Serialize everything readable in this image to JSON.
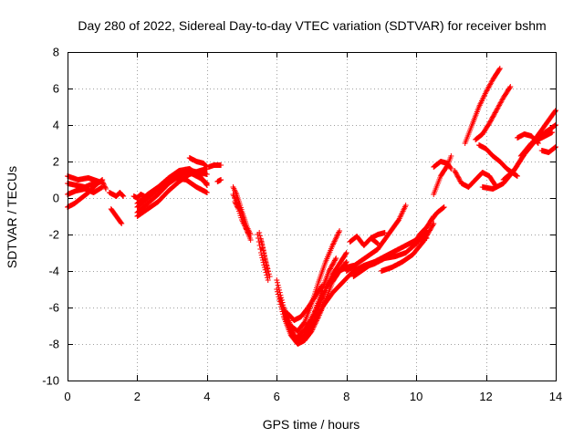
{
  "chart_data": {
    "type": "scatter",
    "title": "Day 280 of 2022, Sidereal Day-to-day VTEC variation (SDTVAR) for receiver bshm",
    "xlabel": "GPS time / hours",
    "ylabel": "SDTVAR / TECUs",
    "xlim": [
      0,
      14
    ],
    "ylim": [
      -10,
      8
    ],
    "xticks": [
      0,
      2,
      4,
      6,
      8,
      10,
      12,
      14
    ],
    "yticks": [
      -10,
      -8,
      -6,
      -4,
      -2,
      0,
      2,
      4,
      6,
      8
    ],
    "grid": true,
    "marker": "+",
    "color": "#ff0000",
    "series": [
      {
        "x": [
          0.0,
          0.25,
          0.5,
          0.75,
          1.0,
          1.1
        ],
        "y": [
          0.8,
          0.7,
          0.6,
          0.8,
          0.9,
          0.5
        ]
      },
      {
        "x": [
          0.0,
          0.25,
          0.5,
          0.75,
          1.0
        ],
        "y": [
          0.2,
          0.4,
          0.5,
          0.3,
          0.6
        ]
      },
      {
        "x": [
          0.0,
          0.2,
          0.4,
          0.6,
          0.8,
          1.0
        ],
        "y": [
          -0.5,
          -0.3,
          0.0,
          0.3,
          0.7,
          1.0
        ]
      },
      {
        "x": [
          0.0,
          0.3,
          0.6,
          0.9
        ],
        "y": [
          1.2,
          1.0,
          1.1,
          0.9
        ]
      },
      {
        "x": [
          1.2,
          1.4,
          1.5,
          1.6
        ],
        "y": [
          0.3,
          0.1,
          0.3,
          0.1
        ]
      },
      {
        "x": [
          1.25,
          1.4,
          1.55
        ],
        "y": [
          -0.6,
          -1.0,
          -1.4
        ]
      },
      {
        "x": [
          1.9,
          2.0,
          2.1,
          2.2
        ],
        "y": [
          0.1,
          0.0,
          0.2,
          0.1
        ]
      },
      {
        "x": [
          2.0,
          2.3,
          2.6,
          2.9,
          3.2,
          3.5,
          3.8,
          4.0
        ],
        "y": [
          -1.0,
          -0.6,
          -0.2,
          0.4,
          0.9,
          1.3,
          1.5,
          1.6
        ]
      },
      {
        "x": [
          2.0,
          2.3,
          2.6,
          2.9,
          3.2,
          3.5,
          3.8,
          4.0
        ],
        "y": [
          -0.8,
          -0.3,
          0.2,
          0.8,
          1.2,
          1.5,
          1.4,
          1.3
        ]
      },
      {
        "x": [
          2.0,
          2.3,
          2.6,
          2.9,
          3.2,
          3.5,
          3.8,
          4.0
        ],
        "y": [
          -0.5,
          0.0,
          0.5,
          1.0,
          1.4,
          1.4,
          1.1,
          0.8
        ]
      },
      {
        "x": [
          2.0,
          2.3,
          2.6,
          2.9,
          3.2,
          3.5,
          3.8,
          4.0
        ],
        "y": [
          -0.3,
          0.2,
          0.6,
          1.1,
          1.5,
          1.6,
          1.2,
          0.7
        ]
      },
      {
        "x": [
          2.5,
          2.8,
          3.1,
          3.4,
          3.7,
          4.0
        ],
        "y": [
          0.4,
          0.8,
          1.1,
          1.0,
          0.6,
          0.3
        ]
      },
      {
        "x": [
          3.5,
          3.7,
          3.9,
          4.0
        ],
        "y": [
          2.2,
          2.0,
          1.9,
          1.7
        ]
      },
      {
        "x": [
          4.05,
          4.2,
          4.4
        ],
        "y": [
          1.7,
          1.8,
          1.8
        ]
      },
      {
        "x": [
          4.3,
          4.4
        ],
        "y": [
          0.9,
          1.0
        ]
      },
      {
        "x": [
          4.75,
          4.85,
          4.95,
          5.05,
          5.15,
          5.25
        ],
        "y": [
          0.6,
          0.2,
          -0.4,
          -1.0,
          -1.6,
          -2.0
        ]
      },
      {
        "x": [
          4.75,
          4.85,
          4.95,
          5.05,
          5.15,
          5.25
        ],
        "y": [
          0.2,
          -0.2,
          -0.6,
          -1.2,
          -1.8,
          -2.3
        ]
      },
      {
        "x": [
          4.8,
          4.9,
          5.0,
          5.1,
          5.2
        ],
        "y": [
          -0.2,
          -0.6,
          -1.2,
          -1.6,
          -2.0
        ]
      },
      {
        "x": [
          5.2
        ],
        "y": [
          -2.0
        ]
      },
      {
        "x": [
          5.45,
          5.55,
          5.65,
          5.75
        ],
        "y": [
          -2.0,
          -3.0,
          -3.8,
          -4.5
        ]
      },
      {
        "x": [
          5.5,
          5.6,
          5.7,
          5.8
        ],
        "y": [
          -1.9,
          -2.7,
          -3.6,
          -4.3
        ]
      },
      {
        "x": [
          5.55,
          5.65,
          5.75
        ],
        "y": [
          -2.3,
          -3.2,
          -4.0
        ]
      },
      {
        "x": [
          6.0,
          6.2,
          6.4,
          6.6,
          6.8,
          7.0,
          7.2,
          7.4,
          7.6,
          7.8,
          8.0
        ],
        "y": [
          -4.5,
          -6.0,
          -7.2,
          -7.8,
          -7.6,
          -7.0,
          -6.0,
          -5.0,
          -4.2,
          -3.6,
          -3.0
        ]
      },
      {
        "x": [
          6.0,
          6.2,
          6.4,
          6.6,
          6.8,
          7.0,
          7.2,
          7.4,
          7.6,
          7.8,
          8.0
        ],
        "y": [
          -5.0,
          -6.5,
          -7.5,
          -8.0,
          -7.8,
          -7.3,
          -6.5,
          -5.6,
          -4.6,
          -4.0,
          -3.5
        ]
      },
      {
        "x": [
          6.1,
          6.3,
          6.5,
          6.7,
          6.9,
          7.1,
          7.3,
          7.5,
          7.7
        ],
        "y": [
          -5.5,
          -6.8,
          -7.6,
          -7.8,
          -7.2,
          -6.2,
          -5.0,
          -4.0,
          -3.3
        ]
      },
      {
        "x": [
          6.2,
          6.4,
          6.6,
          6.8,
          7.0,
          7.2,
          7.4,
          7.6,
          7.8
        ],
        "y": [
          -6.0,
          -7.0,
          -7.3,
          -6.8,
          -5.8,
          -4.6,
          -3.5,
          -2.6,
          -1.8
        ]
      },
      {
        "x": [
          6.3,
          6.5,
          6.7,
          6.9,
          7.1,
          7.3
        ],
        "y": [
          -6.3,
          -6.7,
          -6.5,
          -6.0,
          -5.4,
          -4.8
        ]
      },
      {
        "x": [
          6.6,
          6.8,
          7.0,
          7.2,
          7.4,
          7.6,
          7.8,
          8.0,
          8.2
        ],
        "y": [
          -7.6,
          -7.2,
          -6.6,
          -5.8,
          -5.0,
          -4.4,
          -4.0,
          -3.8,
          -3.7
        ]
      },
      {
        "x": [
          7.0,
          7.3,
          7.6,
          7.9,
          8.2,
          8.5,
          8.8
        ],
        "y": [
          -7.0,
          -6.0,
          -5.2,
          -4.6,
          -4.0,
          -3.7,
          -3.5
        ]
      },
      {
        "x": [
          8.0,
          8.3,
          8.6,
          8.9,
          9.2,
          9.5,
          9.7
        ],
        "y": [
          -4.0,
          -3.6,
          -3.2,
          -2.8,
          -2.0,
          -1.2,
          -0.4
        ]
      },
      {
        "x": [
          8.2,
          8.5,
          8.8,
          9.1,
          9.4,
          9.7,
          10.0,
          10.3
        ],
        "y": [
          -4.3,
          -3.9,
          -3.5,
          -3.2,
          -2.9,
          -2.6,
          -2.3,
          -2.2
        ]
      },
      {
        "x": [
          8.1,
          8.3,
          8.5,
          8.7,
          8.9
        ],
        "y": [
          -2.4,
          -2.1,
          -2.6,
          -2.2,
          -2.5
        ]
      },
      {
        "x": [
          8.7,
          8.9,
          9.1
        ],
        "y": [
          -2.2,
          -2.0,
          -1.9
        ]
      },
      {
        "x": [
          8.5,
          8.8,
          9.1,
          9.4,
          9.7,
          10.0,
          10.3
        ],
        "y": [
          -3.8,
          -3.6,
          -3.3,
          -3.2,
          -3.0,
          -2.5,
          -1.8
        ]
      },
      {
        "x": [
          9.0,
          9.3,
          9.6,
          9.9,
          10.2,
          10.5
        ],
        "y": [
          -4.0,
          -3.8,
          -3.5,
          -3.1,
          -2.4,
          -1.4
        ]
      },
      {
        "x": [
          9.9,
          10.1,
          10.3,
          10.5
        ],
        "y": [
          -2.6,
          -2.0,
          -1.6,
          -1.0
        ]
      },
      {
        "x": [
          10.4,
          10.6,
          10.8
        ],
        "y": [
          -1.3,
          -0.8,
          -0.5
        ]
      },
      {
        "x": [
          10.5,
          10.7,
          10.9,
          11.0
        ],
        "y": [
          0.2,
          1.2,
          1.8,
          2.3
        ]
      },
      {
        "x": [
          10.5,
          10.7,
          10.9,
          11.0
        ],
        "y": [
          1.7,
          2.0,
          1.9,
          1.6
        ]
      },
      {
        "x": [
          11.1,
          11.3,
          11.5,
          11.7,
          11.9,
          12.1,
          12.3
        ],
        "y": [
          1.5,
          0.8,
          0.6,
          1.0,
          1.4,
          1.2,
          0.6
        ]
      },
      {
        "x": [
          11.4,
          11.6,
          11.8,
          12.0,
          12.2,
          12.4
        ],
        "y": [
          3.0,
          4.0,
          5.0,
          5.8,
          6.5,
          7.1
        ]
      },
      {
        "x": [
          11.7,
          11.9,
          12.1,
          12.3,
          12.5,
          12.7
        ],
        "y": [
          3.2,
          3.5,
          4.1,
          4.8,
          5.5,
          6.1
        ]
      },
      {
        "x": [
          11.8,
          12.0,
          12.2,
          12.4,
          12.6,
          12.9
        ],
        "y": [
          2.9,
          2.7,
          2.3,
          2.0,
          1.6,
          1.2
        ]
      },
      {
        "x": [
          11.9,
          12.2,
          12.5,
          12.8,
          13.1,
          13.4,
          13.7,
          14.0
        ],
        "y": [
          0.6,
          0.5,
          0.8,
          1.5,
          2.4,
          3.2,
          4.0,
          4.8
        ]
      },
      {
        "x": [
          12.5,
          12.8,
          13.1,
          13.4,
          13.7,
          14.0
        ],
        "y": [
          1.0,
          1.5,
          2.4,
          3.1,
          3.6,
          4.0
        ]
      },
      {
        "x": [
          12.9,
          13.1,
          13.3,
          13.5
        ],
        "y": [
          3.3,
          3.5,
          3.4,
          3.0
        ]
      },
      {
        "x": [
          13.0,
          13.3,
          13.6,
          13.9
        ],
        "y": [
          2.3,
          3.0,
          3.3,
          3.6
        ]
      },
      {
        "x": [
          13.6,
          13.8,
          14.0
        ],
        "y": [
          2.6,
          2.5,
          2.8
        ]
      }
    ]
  }
}
